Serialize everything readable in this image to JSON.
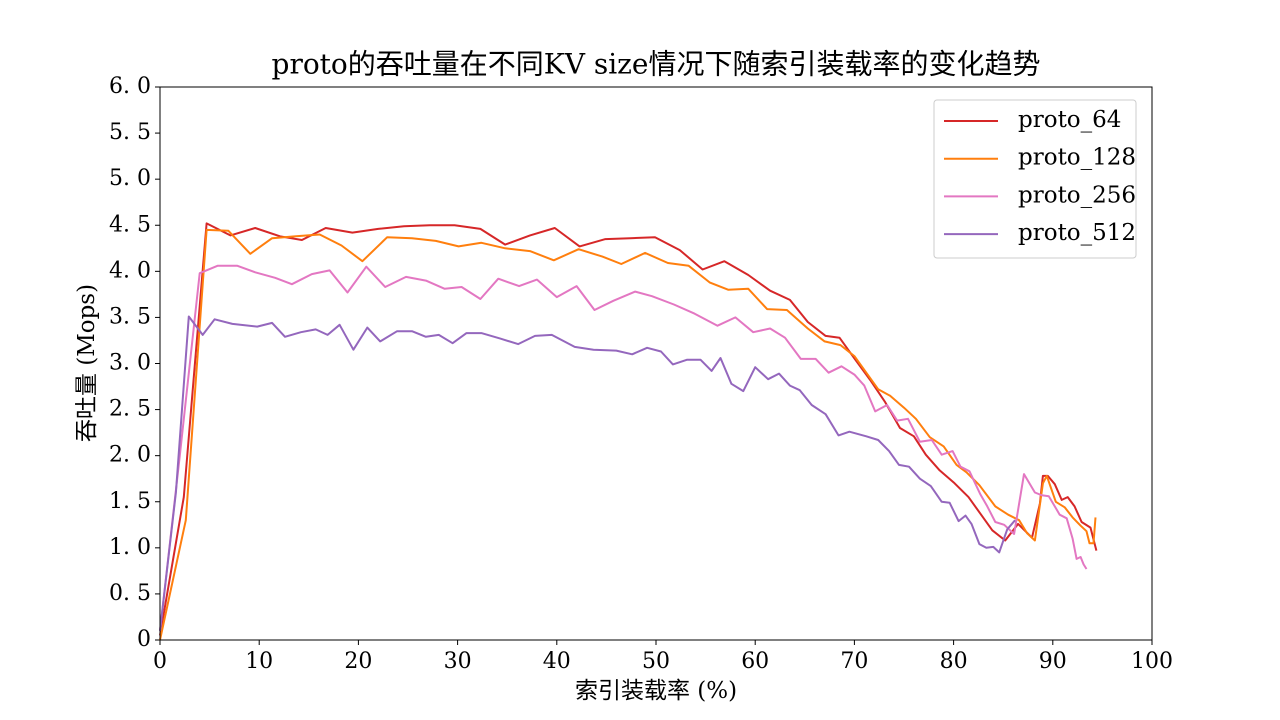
{
  "chart_data": {
    "type": "line",
    "title": "proto的吞吐量在不同KV size情况下随索引装载率的变化趋势",
    "x_label": "索引装载率 (%)",
    "y_label": "吞吐量 (Mops)",
    "xlim": [
      0,
      100
    ],
    "xticks": [
      0,
      10,
      20,
      30,
      40,
      50,
      60,
      70,
      80,
      90,
      100
    ],
    "ylim": [
      0,
      6.0
    ],
    "yticks": [
      0,
      {
        "value": 0.5,
        "label": "0. 5"
      },
      {
        "value": 1.0,
        "label": "1. 0"
      },
      {
        "value": 1.5,
        "label": "1. 5"
      },
      {
        "value": 2.0,
        "label": "2. 0"
      },
      {
        "value": 2.5,
        "label": "2. 5"
      },
      {
        "value": 3.0,
        "label": "3. 0"
      },
      {
        "value": 3.5,
        "label": "3. 5"
      },
      {
        "value": 4.0,
        "label": "4. 0"
      },
      {
        "value": 4.5,
        "label": "4. 5"
      },
      {
        "value": 5.0,
        "label": "5. 0"
      },
      {
        "value": 5.5,
        "label": "5. 5"
      },
      {
        "value": 6.0,
        "label": "6. 0"
      }
    ],
    "legend": "upper right",
    "series": [
      {
        "name": "proto_64",
        "color": "#d62728",
        "x": [
          0,
          2.4,
          4.7,
          7.1,
          9.6,
          12.1,
          14.3,
          16.7,
          19.4,
          22,
          24.6,
          27.2,
          29.7,
          32.3,
          34.8,
          37.3,
          39.8,
          42.3,
          44.9,
          47.4,
          49.9,
          52.4,
          54.7,
          56.9,
          59.3,
          61.5,
          63.5,
          65.3,
          67.1,
          68.5,
          70.1,
          71.6,
          73.1,
          74.6,
          76,
          77.2,
          78.6,
          80.1,
          81.5,
          82.7,
          83.9,
          85.2,
          86.5,
          87.9,
          88.7,
          89.0,
          89.5,
          90.2,
          90.9,
          91.5,
          92.2,
          92.9,
          93.8,
          94.4
        ],
        "values": [
          0.05,
          1.55,
          4.52,
          4.39,
          4.47,
          4.38,
          4.34,
          4.47,
          4.42,
          4.46,
          4.49,
          4.5,
          4.5,
          4.46,
          4.29,
          4.39,
          4.47,
          4.27,
          4.35,
          4.36,
          4.37,
          4.23,
          4.02,
          4.11,
          3.96,
          3.79,
          3.69,
          3.45,
          3.3,
          3.28,
          3.04,
          2.82,
          2.58,
          2.3,
          2.21,
          2.01,
          1.84,
          1.7,
          1.55,
          1.37,
          1.19,
          1.08,
          1.26,
          1.11,
          1.48,
          1.78,
          1.78,
          1.69,
          1.52,
          1.55,
          1.45,
          1.28,
          1.22,
          0.97
        ]
      },
      {
        "name": "proto_128",
        "color": "#ff7f0e",
        "x": [
          0,
          2.6,
          4.7,
          6.9,
          9.1,
          11.3,
          13.7,
          16.1,
          18.3,
          20.4,
          22.9,
          25.4,
          27.8,
          30.1,
          32.4,
          34.8,
          37.3,
          39.7,
          42.2,
          44.6,
          46.5,
          48.9,
          51.2,
          53.3,
          55.4,
          57.3,
          59.3,
          61.2,
          63.2,
          65.3,
          67.0,
          68.6,
          70,
          71.2,
          72.4,
          73.6,
          75,
          76.2,
          77.6,
          79,
          80.3,
          81.3,
          82.6,
          84.2,
          85.5,
          86.6,
          87.4,
          88.2,
          89,
          89.4,
          90.3,
          91.2,
          92,
          92.8,
          93.4,
          93.7,
          94.1,
          94.3
        ],
        "values": [
          0,
          1.3,
          4.45,
          4.44,
          4.19,
          4.36,
          4.38,
          4.4,
          4.28,
          4.11,
          4.37,
          4.36,
          4.33,
          4.27,
          4.31,
          4.25,
          4.22,
          4.12,
          4.24,
          4.16,
          4.08,
          4.2,
          4.09,
          4.06,
          3.88,
          3.8,
          3.81,
          3.59,
          3.58,
          3.38,
          3.24,
          3.2,
          3.08,
          2.9,
          2.72,
          2.65,
          2.52,
          2.4,
          2.2,
          2.1,
          1.9,
          1.82,
          1.68,
          1.45,
          1.36,
          1.3,
          1.16,
          1.08,
          1.7,
          1.78,
          1.5,
          1.44,
          1.33,
          1.24,
          1.18,
          1.05,
          1.05,
          1.33
        ]
      },
      {
        "name": "proto_256",
        "color": "#e377c2",
        "x": [
          0,
          2,
          4,
          5.8,
          7.8,
          9.6,
          11.6,
          13.3,
          15.3,
          17.1,
          18.9,
          20.8,
          22.7,
          24.8,
          26.8,
          28.7,
          30.4,
          32.3,
          34.1,
          36.2,
          38,
          40,
          42,
          43.8,
          45.7,
          47.9,
          49.6,
          51.8,
          53.9,
          56.2,
          58,
          59.8,
          61.5,
          63,
          64.6,
          66.1,
          67.4,
          68.7,
          70,
          71,
          72.1,
          73.3,
          74.3,
          75.4,
          76.6,
          77.8,
          78.8,
          79.9,
          80.7,
          81.6,
          82.7,
          83.4,
          84.2,
          85.1,
          86.1,
          87.1,
          88.2,
          88.9,
          89.6,
          90.7,
          91.4,
          92,
          92.4,
          92.8,
          93.1,
          93.4
        ],
        "values": [
          0.1,
          2.0,
          3.98,
          4.06,
          4.06,
          3.99,
          3.93,
          3.86,
          3.97,
          4.01,
          3.77,
          4.05,
          3.83,
          3.94,
          3.9,
          3.81,
          3.83,
          3.7,
          3.92,
          3.84,
          3.91,
          3.72,
          3.84,
          3.58,
          3.68,
          3.78,
          3.73,
          3.64,
          3.54,
          3.41,
          3.5,
          3.34,
          3.38,
          3.28,
          3.05,
          3.05,
          2.9,
          2.97,
          2.88,
          2.76,
          2.48,
          2.55,
          2.38,
          2.4,
          2.15,
          2.17,
          2.01,
          2.05,
          1.88,
          1.83,
          1.58,
          1.45,
          1.28,
          1.25,
          1.15,
          1.8,
          1.6,
          1.57,
          1.56,
          1.36,
          1.32,
          1.1,
          0.88,
          0.9,
          0.82,
          0.77
        ]
      },
      {
        "name": "proto_512",
        "color": "#9467bd",
        "x": [
          0,
          1.6,
          2.9,
          4.3,
          5.5,
          7.3,
          9.8,
          11.3,
          12.6,
          14.2,
          15.7,
          16.9,
          18.1,
          19.5,
          20.9,
          22.2,
          23.9,
          25.4,
          26.8,
          28.1,
          29.5,
          30.9,
          32.4,
          34.3,
          36.1,
          37.8,
          39.5,
          41.8,
          43.7,
          46,
          47.6,
          49.1,
          50.5,
          51.7,
          53.1,
          54.5,
          55.6,
          56.5,
          57.6,
          58.8,
          60,
          61.3,
          62.4,
          63.5,
          64.5,
          65.7,
          67.1,
          68.4,
          69.5,
          71.2,
          72.4,
          73.5,
          74.5,
          75.5,
          76.6,
          77.7,
          78.8,
          79.6,
          80.5,
          81.2,
          81.8,
          82.6,
          83.3,
          84,
          84.6,
          85.4,
          86.2
        ],
        "values": [
          0.1,
          1.6,
          3.51,
          3.31,
          3.48,
          3.43,
          3.4,
          3.44,
          3.29,
          3.34,
          3.37,
          3.31,
          3.42,
          3.15,
          3.39,
          3.24,
          3.35,
          3.35,
          3.29,
          3.31,
          3.22,
          3.33,
          3.33,
          3.27,
          3.21,
          3.3,
          3.31,
          3.18,
          3.15,
          3.14,
          3.1,
          3.17,
          3.13,
          2.99,
          3.04,
          3.04,
          2.92,
          3.06,
          2.78,
          2.7,
          2.96,
          2.83,
          2.89,
          2.76,
          2.71,
          2.55,
          2.45,
          2.22,
          2.26,
          2.21,
          2.17,
          2.05,
          1.9,
          1.88,
          1.75,
          1.67,
          1.5,
          1.49,
          1.29,
          1.35,
          1.26,
          1.04,
          1.0,
          1.01,
          0.95,
          1.2,
          1.3
        ]
      }
    ]
  }
}
